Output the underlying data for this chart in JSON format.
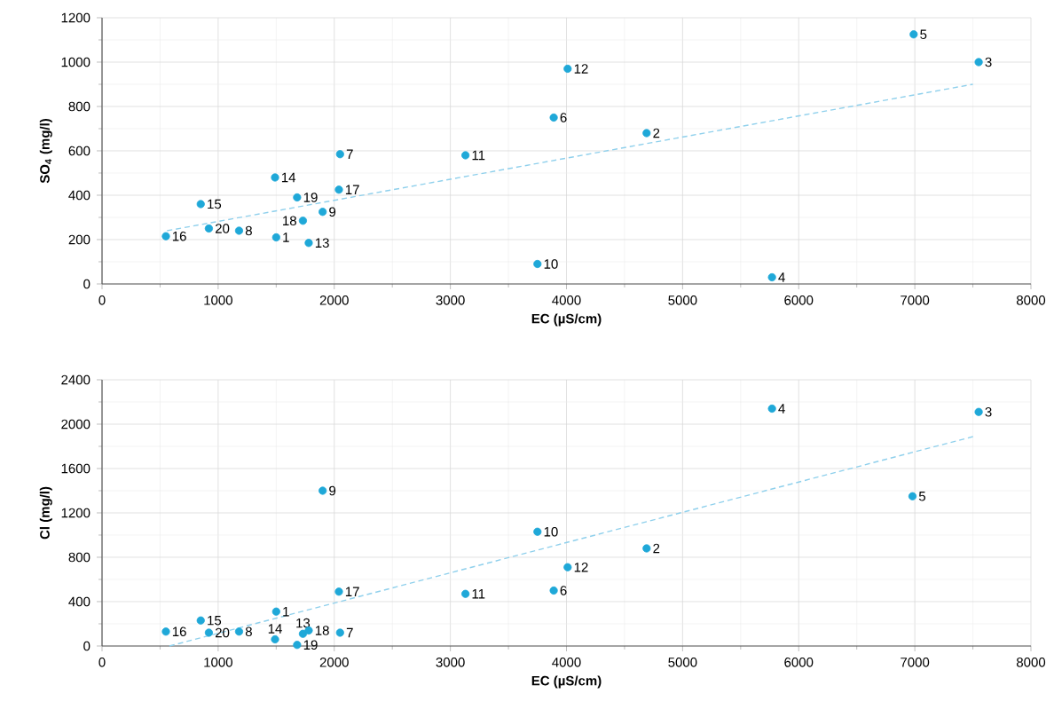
{
  "chart_data": [
    {
      "type": "scatter",
      "xlabel": "EC (µS/cm)",
      "ylabel": "SO$_{4}$ (mg/l)",
      "xlim": [
        0,
        8000
      ],
      "ylim": [
        0,
        1200
      ],
      "xticks": [
        0,
        1000,
        2000,
        3000,
        4000,
        5000,
        6000,
        7000,
        8000
      ],
      "yticks": [
        0,
        200,
        400,
        600,
        800,
        1000,
        1200
      ],
      "grid": true,
      "series": [
        {
          "color": "#1fa8d8",
          "marker": "circle",
          "x": [
            1500,
            4690,
            7550,
            5770,
            6990,
            3890,
            2050,
            1180,
            1900,
            3750,
            3130,
            4010,
            1780,
            1490,
            850,
            550,
            2040,
            1730,
            1680,
            920
          ],
          "values": [
            210,
            680,
            1000,
            30,
            1125,
            750,
            585,
            240,
            325,
            90,
            580,
            970,
            185,
            480,
            360,
            215,
            425,
            285,
            390,
            250
          ]
        },
        {
          "type": "line",
          "color": "#8fd0ec",
          "marker": "none",
          "line_style": "dashed",
          "x": [
            560,
            7500
          ],
          "values": [
            240,
            900
          ]
        }
      ],
      "annotations": [
        {
          "text": "1",
          "x": 1500,
          "y": 210
        },
        {
          "text": "2",
          "x": 4690,
          "y": 680
        },
        {
          "text": "3",
          "x": 7550,
          "y": 1000
        },
        {
          "text": "4",
          "x": 5770,
          "y": 30
        },
        {
          "text": "5",
          "x": 6990,
          "y": 1125
        },
        {
          "text": "6",
          "x": 3890,
          "y": 750
        },
        {
          "text": "7",
          "x": 2050,
          "y": 585
        },
        {
          "text": "8",
          "x": 1180,
          "y": 240
        },
        {
          "text": "9",
          "x": 1900,
          "y": 325
        },
        {
          "text": "10",
          "x": 3750,
          "y": 90
        },
        {
          "text": "11",
          "x": 3130,
          "y": 580
        },
        {
          "text": "12",
          "x": 4010,
          "y": 970
        },
        {
          "text": "13",
          "x": 1780,
          "y": 185
        },
        {
          "text": "14",
          "x": 1490,
          "y": 480
        },
        {
          "text": "15",
          "x": 850,
          "y": 360
        },
        {
          "text": "16",
          "x": 550,
          "y": 215
        },
        {
          "text": "17",
          "x": 2040,
          "y": 425
        },
        {
          "text": "18",
          "x": 1730,
          "y": 285
        },
        {
          "text": "19",
          "x": 1680,
          "y": 390
        },
        {
          "text": "20",
          "x": 920,
          "y": 250
        }
      ]
    },
    {
      "type": "scatter",
      "xlabel": "EC (µS/cm)",
      "ylabel": "Cl (mg/l)",
      "xlim": [
        0,
        8000
      ],
      "ylim": [
        0,
        2400
      ],
      "xticks": [
        0,
        1000,
        2000,
        3000,
        4000,
        5000,
        6000,
        7000,
        8000
      ],
      "yticks": [
        0,
        400,
        800,
        1200,
        1600,
        2000,
        2400
      ],
      "grid": true,
      "series": [
        {
          "color": "#1fa8d8",
          "marker": "circle",
          "x": [
            1500,
            4690,
            7550,
            5770,
            6980,
            3890,
            2050,
            1180,
            1900,
            3750,
            3130,
            4010,
            1730,
            1490,
            850,
            550,
            2040,
            1780,
            1680,
            920
          ],
          "values": [
            310,
            880,
            2110,
            2140,
            1350,
            500,
            120,
            130,
            1400,
            1030,
            470,
            710,
            110,
            60,
            230,
            130,
            490,
            140,
            10,
            120
          ]
        },
        {
          "type": "line",
          "color": "#8fd0ec",
          "marker": "none",
          "line_style": "dashed",
          "x": [
            580,
            7510
          ],
          "values": [
            0,
            1890
          ]
        }
      ],
      "annotations": [
        {
          "text": "1",
          "x": 1500,
          "y": 310
        },
        {
          "text": "2",
          "x": 4690,
          "y": 880
        },
        {
          "text": "3",
          "x": 7550,
          "y": 2110
        },
        {
          "text": "4",
          "x": 5770,
          "y": 2140
        },
        {
          "text": "5",
          "x": 6980,
          "y": 1350
        },
        {
          "text": "6",
          "x": 3890,
          "y": 500
        },
        {
          "text": "7",
          "x": 2050,
          "y": 120
        },
        {
          "text": "8",
          "x": 1180,
          "y": 130
        },
        {
          "text": "9",
          "x": 1900,
          "y": 1400
        },
        {
          "text": "10",
          "x": 3750,
          "y": 1030
        },
        {
          "text": "11",
          "x": 3130,
          "y": 470
        },
        {
          "text": "12",
          "x": 4010,
          "y": 710
        },
        {
          "text": "13",
          "x": 1730,
          "y": 110
        },
        {
          "text": "14",
          "x": 1490,
          "y": 60
        },
        {
          "text": "15",
          "x": 850,
          "y": 230
        },
        {
          "text": "16",
          "x": 550,
          "y": 130
        },
        {
          "text": "17",
          "x": 2040,
          "y": 490
        },
        {
          "text": "18",
          "x": 1780,
          "y": 140
        },
        {
          "text": "19",
          "x": 1680,
          "y": 10
        },
        {
          "text": "20",
          "x": 920,
          "y": 120
        }
      ]
    }
  ]
}
